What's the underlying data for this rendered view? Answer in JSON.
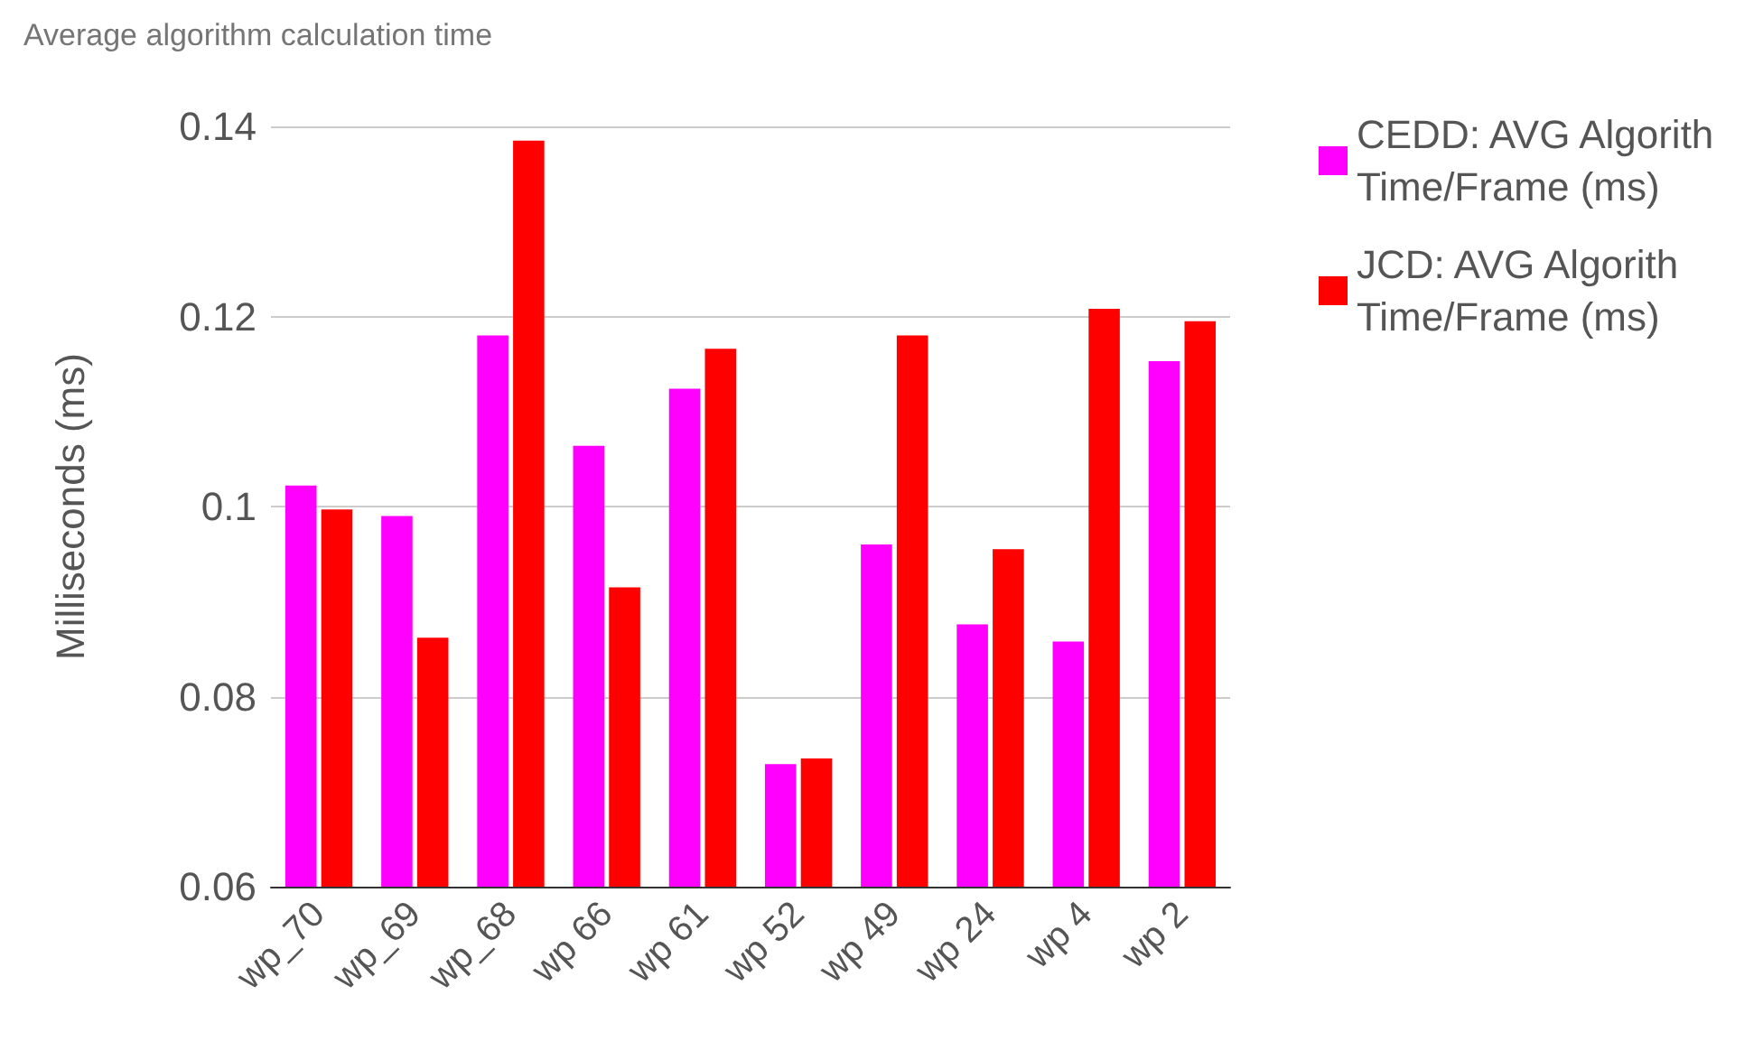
{
  "chart_data": {
    "type": "bar",
    "title": "Average algorithm calculation time",
    "ylabel": "Milliseconds (ms)",
    "categories": [
      "wp_70",
      "wp_69",
      "wp_68",
      "wp 66",
      "wp 61",
      "wp 52",
      "wp 49",
      "wp 24",
      "wp 4",
      "wp 2"
    ],
    "series": [
      {
        "name": "CEDD: AVG Algorith Time/Frame (ms)",
        "color": "#ff00ff",
        "values": [
          0.1022,
          0.099,
          0.118,
          0.1064,
          0.1124,
          0.0729,
          0.096,
          0.0876,
          0.0858,
          0.1153
        ]
      },
      {
        "name": "JCD: AVG Algorith Time/Frame (ms)",
        "color": "#ff0000",
        "values": [
          0.0997,
          0.0862,
          0.1385,
          0.0915,
          0.1166,
          0.0735,
          0.118,
          0.0955,
          0.1208,
          0.1195
        ]
      }
    ],
    "ylim": [
      0.06,
      0.14
    ],
    "yticks": [
      0.06,
      0.08,
      0.1,
      0.12,
      0.14
    ],
    "grid": "y",
    "legend": "right"
  }
}
